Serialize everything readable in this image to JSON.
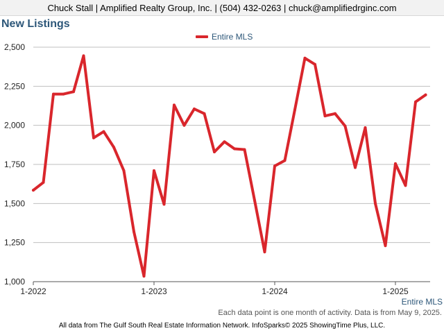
{
  "header": {
    "contact": "Chuck Stall | Amplified Realty Group, Inc. | (504) 432-0263 | chuck@amplifiedrginc.com"
  },
  "colors": {
    "series": "#d9262c",
    "title": "#2d5779",
    "grid": "#bfbfbf"
  },
  "chart_data": {
    "type": "line",
    "title": "New Listings",
    "grid": "horizontal",
    "legend_placement": "top-center",
    "ylim": [
      1000,
      2500
    ],
    "y_ticks": [
      1000,
      1250,
      1500,
      1750,
      2000,
      2250,
      2500
    ],
    "y_tick_labels": [
      "1,000",
      "1,250",
      "1,500",
      "1,750",
      "2,000",
      "2,250",
      "2,500"
    ],
    "x_ticks": [
      "1-2022",
      "1-2023",
      "1-2024",
      "1-2025"
    ],
    "x_series_label": "Entire MLS",
    "series": [
      {
        "name": "Entire MLS",
        "color": "#d9262c",
        "points": [
          {
            "x": "2022-01",
            "y": 1585
          },
          {
            "x": "2022-02",
            "y": 1635
          },
          {
            "x": "2022-03",
            "y": 2200
          },
          {
            "x": "2022-04",
            "y": 2200
          },
          {
            "x": "2022-05",
            "y": 2215
          },
          {
            "x": "2022-06",
            "y": 2445
          },
          {
            "x": "2022-07",
            "y": 1920
          },
          {
            "x": "2022-08",
            "y": 1960
          },
          {
            "x": "2022-09",
            "y": 1860
          },
          {
            "x": "2022-10",
            "y": 1710
          },
          {
            "x": "2022-11",
            "y": 1320
          },
          {
            "x": "2022-12",
            "y": 1035
          },
          {
            "x": "2023-01",
            "y": 1710
          },
          {
            "x": "2023-02",
            "y": 1495
          },
          {
            "x": "2023-03",
            "y": 2130
          },
          {
            "x": "2023-04",
            "y": 2000
          },
          {
            "x": "2023-05",
            "y": 2105
          },
          {
            "x": "2023-06",
            "y": 2075
          },
          {
            "x": "2023-07",
            "y": 1830
          },
          {
            "x": "2023-08",
            "y": 1895
          },
          {
            "x": "2023-09",
            "y": 1850
          },
          {
            "x": "2023-10",
            "y": 1845
          },
          {
            "x": "2023-11",
            "y": 1520
          },
          {
            "x": "2023-12",
            "y": 1190
          },
          {
            "x": "2024-01",
            "y": 1740
          },
          {
            "x": "2024-02",
            "y": 1775
          },
          {
            "x": "2024-03",
            "y": 2100
          },
          {
            "x": "2024-04",
            "y": 2430
          },
          {
            "x": "2024-05",
            "y": 2390
          },
          {
            "x": "2024-06",
            "y": 2060
          },
          {
            "x": "2024-07",
            "y": 2075
          },
          {
            "x": "2024-08",
            "y": 1995
          },
          {
            "x": "2024-09",
            "y": 1730
          },
          {
            "x": "2024-10",
            "y": 1985
          },
          {
            "x": "2024-11",
            "y": 1500
          },
          {
            "x": "2024-12",
            "y": 1230
          },
          {
            "x": "2025-01",
            "y": 1755
          },
          {
            "x": "2025-02",
            "y": 1615
          },
          {
            "x": "2025-03",
            "y": 2150
          },
          {
            "x": "2025-04",
            "y": 2195
          }
        ]
      }
    ]
  },
  "footer": {
    "note": "Each data point is one month of activity. Data is from May 9, 2025.",
    "source": "All data from The Gulf South Real Estate Information Network. InfoSparks© 2025 ShowingTime Plus, LLC."
  }
}
